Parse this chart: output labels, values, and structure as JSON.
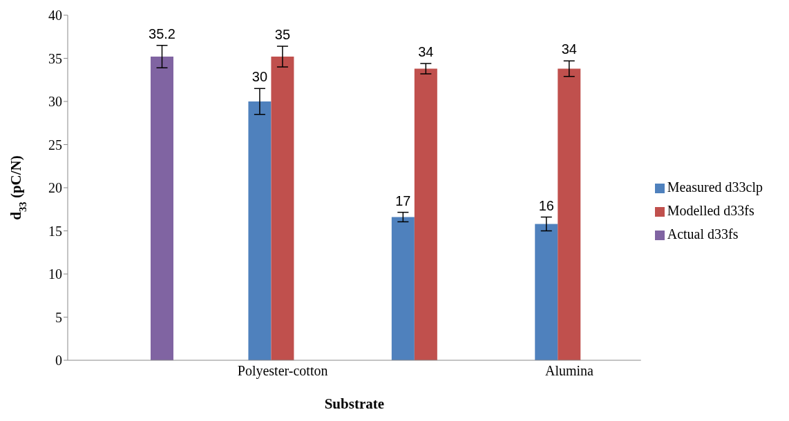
{
  "chart_data": {
    "type": "bar",
    "xlabel": "Substrate",
    "ylabel": "d$_{33}$ (pC/N)",
    "categories": [
      null,
      "Polyester-cotton",
      null,
      "Alumina"
    ],
    "series": [
      {
        "name": "Measured d33clp",
        "color": "#4f81bd",
        "values": [
          null,
          30,
          16.6,
          15.8
        ],
        "errors": [
          null,
          1.5,
          0.55,
          0.8
        ],
        "value_labels": [
          null,
          "30",
          "17",
          "16"
        ]
      },
      {
        "name": "Modelled d33fs",
        "color": "#c0504d",
        "values": [
          null,
          35.2,
          33.8,
          33.8
        ],
        "errors": [
          null,
          1.2,
          0.6,
          0.9
        ],
        "value_labels": [
          null,
          "35",
          "34",
          "34"
        ]
      },
      {
        "name": "Actual d33fs",
        "color": "#8064a2",
        "values": [
          35.2,
          null,
          null,
          null
        ],
        "errors": [
          1.3,
          null,
          null,
          null
        ],
        "value_labels": [
          "35.2",
          null,
          null,
          null
        ]
      }
    ],
    "ylim": [
      0,
      40
    ],
    "yticks": [
      0,
      5,
      10,
      15,
      20,
      25,
      30,
      35,
      40
    ],
    "grid": false,
    "legend": "right"
  }
}
